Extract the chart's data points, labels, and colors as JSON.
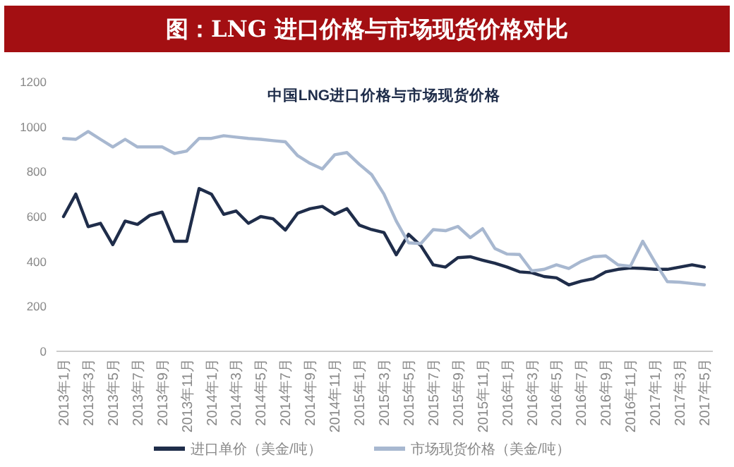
{
  "chart_data": {
    "type": "line",
    "title": "图：LNG 进口价格与市场现货价格对比",
    "subtitle": "中国LNG进口价格与市场现货价格",
    "categories": [
      "2013年1月",
      null,
      "2013年3月",
      null,
      "2013年5月",
      null,
      "2013年7月",
      null,
      "2013年9月",
      null,
      "2013年11月",
      null,
      "2014年1月",
      null,
      "2014年3月",
      null,
      "2014年5月",
      null,
      "2014年7月",
      null,
      "2014年9月",
      null,
      "2014年11月",
      null,
      "2015年1月",
      null,
      "2015年3月",
      null,
      "2015年5月",
      null,
      "2015年7月",
      null,
      "2015年9月",
      null,
      "2015年11月",
      null,
      "2016年1月",
      null,
      "2016年3月",
      null,
      "2016年5月",
      null,
      "2016年7月",
      null,
      "2016年9月",
      null,
      "2016年11月",
      null,
      "2017年1月",
      null,
      "2017年3月",
      null,
      "2017年5月"
    ],
    "series": [
      {
        "name": "进口单价（美金/吨）",
        "color": "#1f2d4a",
        "values": [
          600,
          700,
          555,
          570,
          475,
          580,
          565,
          605,
          620,
          490,
          490,
          725,
          700,
          610,
          625,
          570,
          600,
          590,
          540,
          615,
          635,
          645,
          610,
          635,
          562,
          542,
          529,
          430,
          521,
          470,
          385,
          375,
          417,
          421,
          406,
          392,
          375,
          354,
          350,
          333,
          327,
          296,
          312,
          323,
          354,
          365,
          371,
          369,
          365,
          365,
          375,
          385,
          375
        ]
      },
      {
        "name": "市场现货价格（美金/吨）",
        "color": "#a8b8d0",
        "values": [
          948,
          944,
          979,
          944,
          910,
          944,
          910,
          910,
          910,
          881,
          892,
          948,
          948,
          960,
          954,
          948,
          944,
          938,
          933,
          871,
          837,
          812,
          875,
          885,
          833,
          787,
          700,
          580,
          483,
          480,
          542,
          537,
          556,
          506,
          546,
          458,
          433,
          431,
          358,
          365,
          385,
          369,
          400,
          421,
          425,
          385,
          379,
          490,
          396,
          310,
          308,
          302,
          296
        ]
      }
    ],
    "ylim": [
      0,
      1200
    ],
    "yticks": [
      0,
      200,
      400,
      600,
      800,
      1000,
      1200
    ],
    "legend": "bottom"
  }
}
